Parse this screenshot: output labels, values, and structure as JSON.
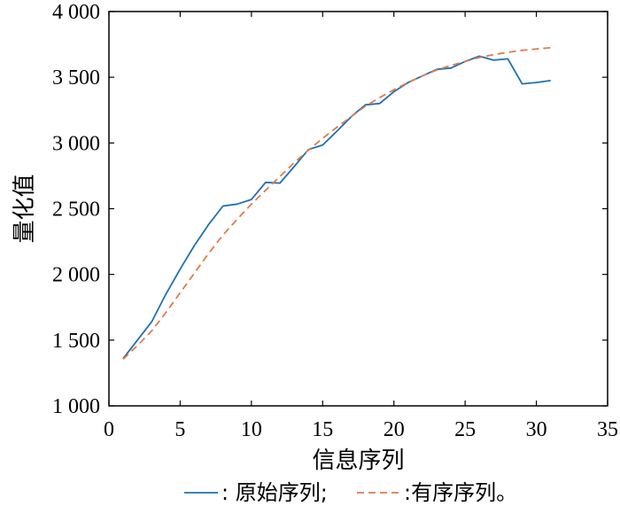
{
  "chart_data": {
    "type": "line",
    "xlabel": "信息序列",
    "ylabel": "量化值",
    "xlim": [
      0,
      35
    ],
    "ylim": [
      1000,
      4000
    ],
    "xticks": [
      {
        "value": 0,
        "label": "0"
      },
      {
        "value": 5,
        "label": "5"
      },
      {
        "value": 10,
        "label": "10"
      },
      {
        "value": 15,
        "label": "15"
      },
      {
        "value": 20,
        "label": "20"
      },
      {
        "value": 25,
        "label": "25"
      },
      {
        "value": 30,
        "label": "30"
      },
      {
        "value": 35,
        "label": "35"
      }
    ],
    "yticks": [
      {
        "value": 1000,
        "label": "1 000"
      },
      {
        "value": 1500,
        "label": "1 500"
      },
      {
        "value": 2000,
        "label": "2 000"
      },
      {
        "value": 2500,
        "label": "2 500"
      },
      {
        "value": 3000,
        "label": "3 000"
      },
      {
        "value": 3500,
        "label": "3 500"
      },
      {
        "value": 4000,
        "label": "4 000"
      }
    ],
    "grid": false,
    "legend_position": "bottom",
    "series": [
      {
        "name": ": 原始序列;",
        "color": "#1f6fb5",
        "style": "solid",
        "x": [
          1,
          2,
          3,
          4,
          5,
          6,
          7,
          8,
          9,
          10,
          11,
          12,
          13,
          14,
          15,
          16,
          17,
          18,
          19,
          20,
          21,
          22,
          23,
          24,
          25,
          26,
          27,
          28,
          29,
          30,
          31
        ],
        "y": [
          1360,
          1500,
          1640,
          1850,
          2040,
          2220,
          2380,
          2520,
          2535,
          2570,
          2700,
          2695,
          2820,
          2950,
          2985,
          3090,
          3200,
          3290,
          3300,
          3390,
          3460,
          3510,
          3560,
          3570,
          3620,
          3660,
          3630,
          3640,
          3450,
          3460,
          3475
        ]
      },
      {
        "name": ":有序序列。",
        "color": "#e07b4c",
        "style": "dashed",
        "x": [
          1,
          2,
          3,
          4,
          5,
          6,
          7,
          8,
          9,
          10,
          11,
          12,
          13,
          14,
          15,
          16,
          17,
          18,
          19,
          20,
          21,
          22,
          23,
          24,
          25,
          26,
          27,
          28,
          29,
          30,
          31
        ],
        "y": [
          1355,
          1460,
          1570,
          1710,
          1860,
          2010,
          2160,
          2300,
          2420,
          2535,
          2640,
          2745,
          2850,
          2945,
          3035,
          3120,
          3200,
          3280,
          3345,
          3405,
          3460,
          3510,
          3555,
          3590,
          3620,
          3650,
          3672,
          3690,
          3705,
          3715,
          3725
        ]
      }
    ]
  }
}
